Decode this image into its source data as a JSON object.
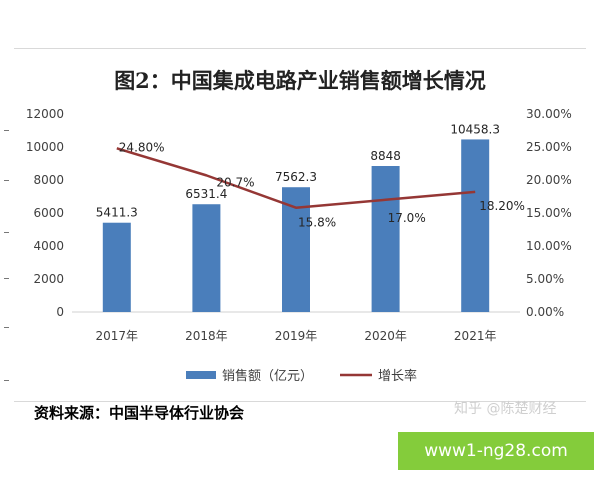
{
  "chart_data": {
    "type": "bar",
    "title": "图2：中国集成电路产业销售额增长情况",
    "categories": [
      "2017年",
      "2018年",
      "2019年",
      "2020年",
      "2021年"
    ],
    "series": [
      {
        "name": "销售额（亿元）",
        "type": "bar",
        "axis": "left",
        "values": [
          5411.3,
          6531.4,
          7562.3,
          8848,
          10458.3
        ],
        "labels": [
          "5411.3",
          "6531.4",
          "7562.3",
          "8848",
          "10458.3"
        ]
      },
      {
        "name": "增长率",
        "type": "line",
        "axis": "right",
        "values": [
          24.8,
          20.7,
          15.8,
          17.0,
          18.2
        ],
        "labels": [
          "24.80%",
          "20.7%",
          "15.8%",
          "17.0%",
          "18.20%"
        ]
      }
    ],
    "y_left": {
      "min": 0,
      "max": 12000,
      "ticks": [
        "0",
        "2000",
        "4000",
        "6000",
        "8000",
        "10000",
        "12000"
      ]
    },
    "y_right": {
      "min": 0,
      "max": 30,
      "ticks": [
        "0.00%",
        "5.00%",
        "10.00%",
        "15.00%",
        "20.00%",
        "25.00%",
        "30.00%"
      ]
    },
    "legend_position": "bottom",
    "grid": false,
    "colors": {
      "bar": "#4a7ebb",
      "line": "#953735"
    }
  },
  "source_text": "资料来源：中国半导体行业协会",
  "watermark": "知乎 @陈楚财经",
  "site_label": "www1-ng28.com"
}
